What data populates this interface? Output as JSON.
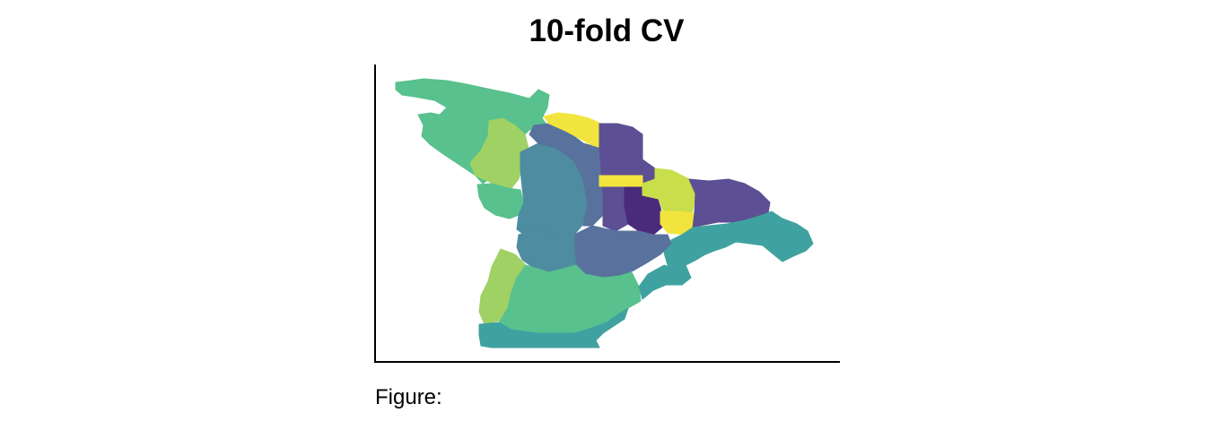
{
  "title": "10-fold CV",
  "caption": "Figure:",
  "map": {
    "description_type": "choropleth map of spatial cross-validation folds",
    "colormap": "viridis",
    "fold_colors": {
      "dark_purple": "#4a2a7a",
      "purple": "#5c4f93",
      "slate_blue": "#58729d",
      "steel_blue": "#4d8ca1",
      "teal": "#3fa2a0",
      "green_teal": "#49b497",
      "mint": "#58c18e",
      "lime_green": "#9fd164",
      "yellow_green": "#c8de4a",
      "yellow": "#f2e43e"
    }
  }
}
